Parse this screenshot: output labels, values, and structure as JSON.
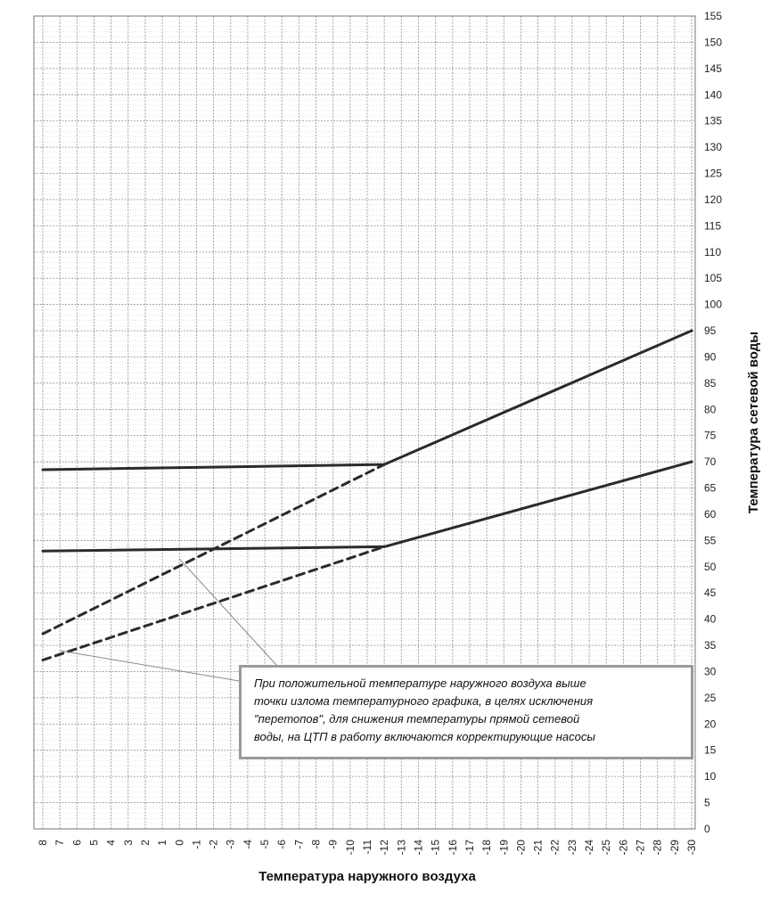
{
  "chart_data": {
    "type": "line",
    "xlabel": "Температура наружного воздуха",
    "ylabel": "Температура сетевой воды",
    "x_ticks": [
      8,
      7,
      6,
      5,
      4,
      3,
      2,
      1,
      0,
      -1,
      -2,
      -3,
      -4,
      -5,
      -6,
      -7,
      -8,
      -9,
      -10,
      -11,
      -12,
      -13,
      -14,
      -15,
      -16,
      -17,
      -18,
      -19,
      -20,
      -21,
      -22,
      -23,
      -24,
      -25,
      -26,
      -27,
      -28,
      -29,
      -30
    ],
    "xlim": [
      8,
      -30
    ],
    "ylim": [
      0,
      155
    ],
    "y_tick_step": 5,
    "grid": true,
    "series": [
      {
        "style": "solid",
        "color": "#2b2b2b",
        "x": [
          8,
          -12,
          -30
        ],
        "y": [
          68.5,
          69.5,
          95
        ]
      },
      {
        "style": "solid",
        "color": "#2b2b2b",
        "x": [
          8,
          -12,
          -30
        ],
        "y": [
          53,
          53.8,
          70
        ]
      },
      {
        "style": "dashed",
        "color": "#2b2b2b",
        "x": [
          8,
          -12
        ],
        "y": [
          37.2,
          69.5
        ]
      },
      {
        "style": "dashed",
        "color": "#2b2b2b",
        "x": [
          8,
          -12
        ],
        "y": [
          32.2,
          53.8
        ]
      }
    ],
    "annotation": {
      "lines": [
        "При положительной температуре наружного воздуха выше",
        "точки излома температурного графика,  в целях исключения",
        "\"перетопов\", для снижения температуры  прямой сетевой",
        "воды, на ЦТП в работу включаются  корректирующие насосы"
      ],
      "leader_targets": [
        {
          "x": 0,
          "y": 51.5
        },
        {
          "x": 7,
          "y": 34
        }
      ]
    }
  }
}
